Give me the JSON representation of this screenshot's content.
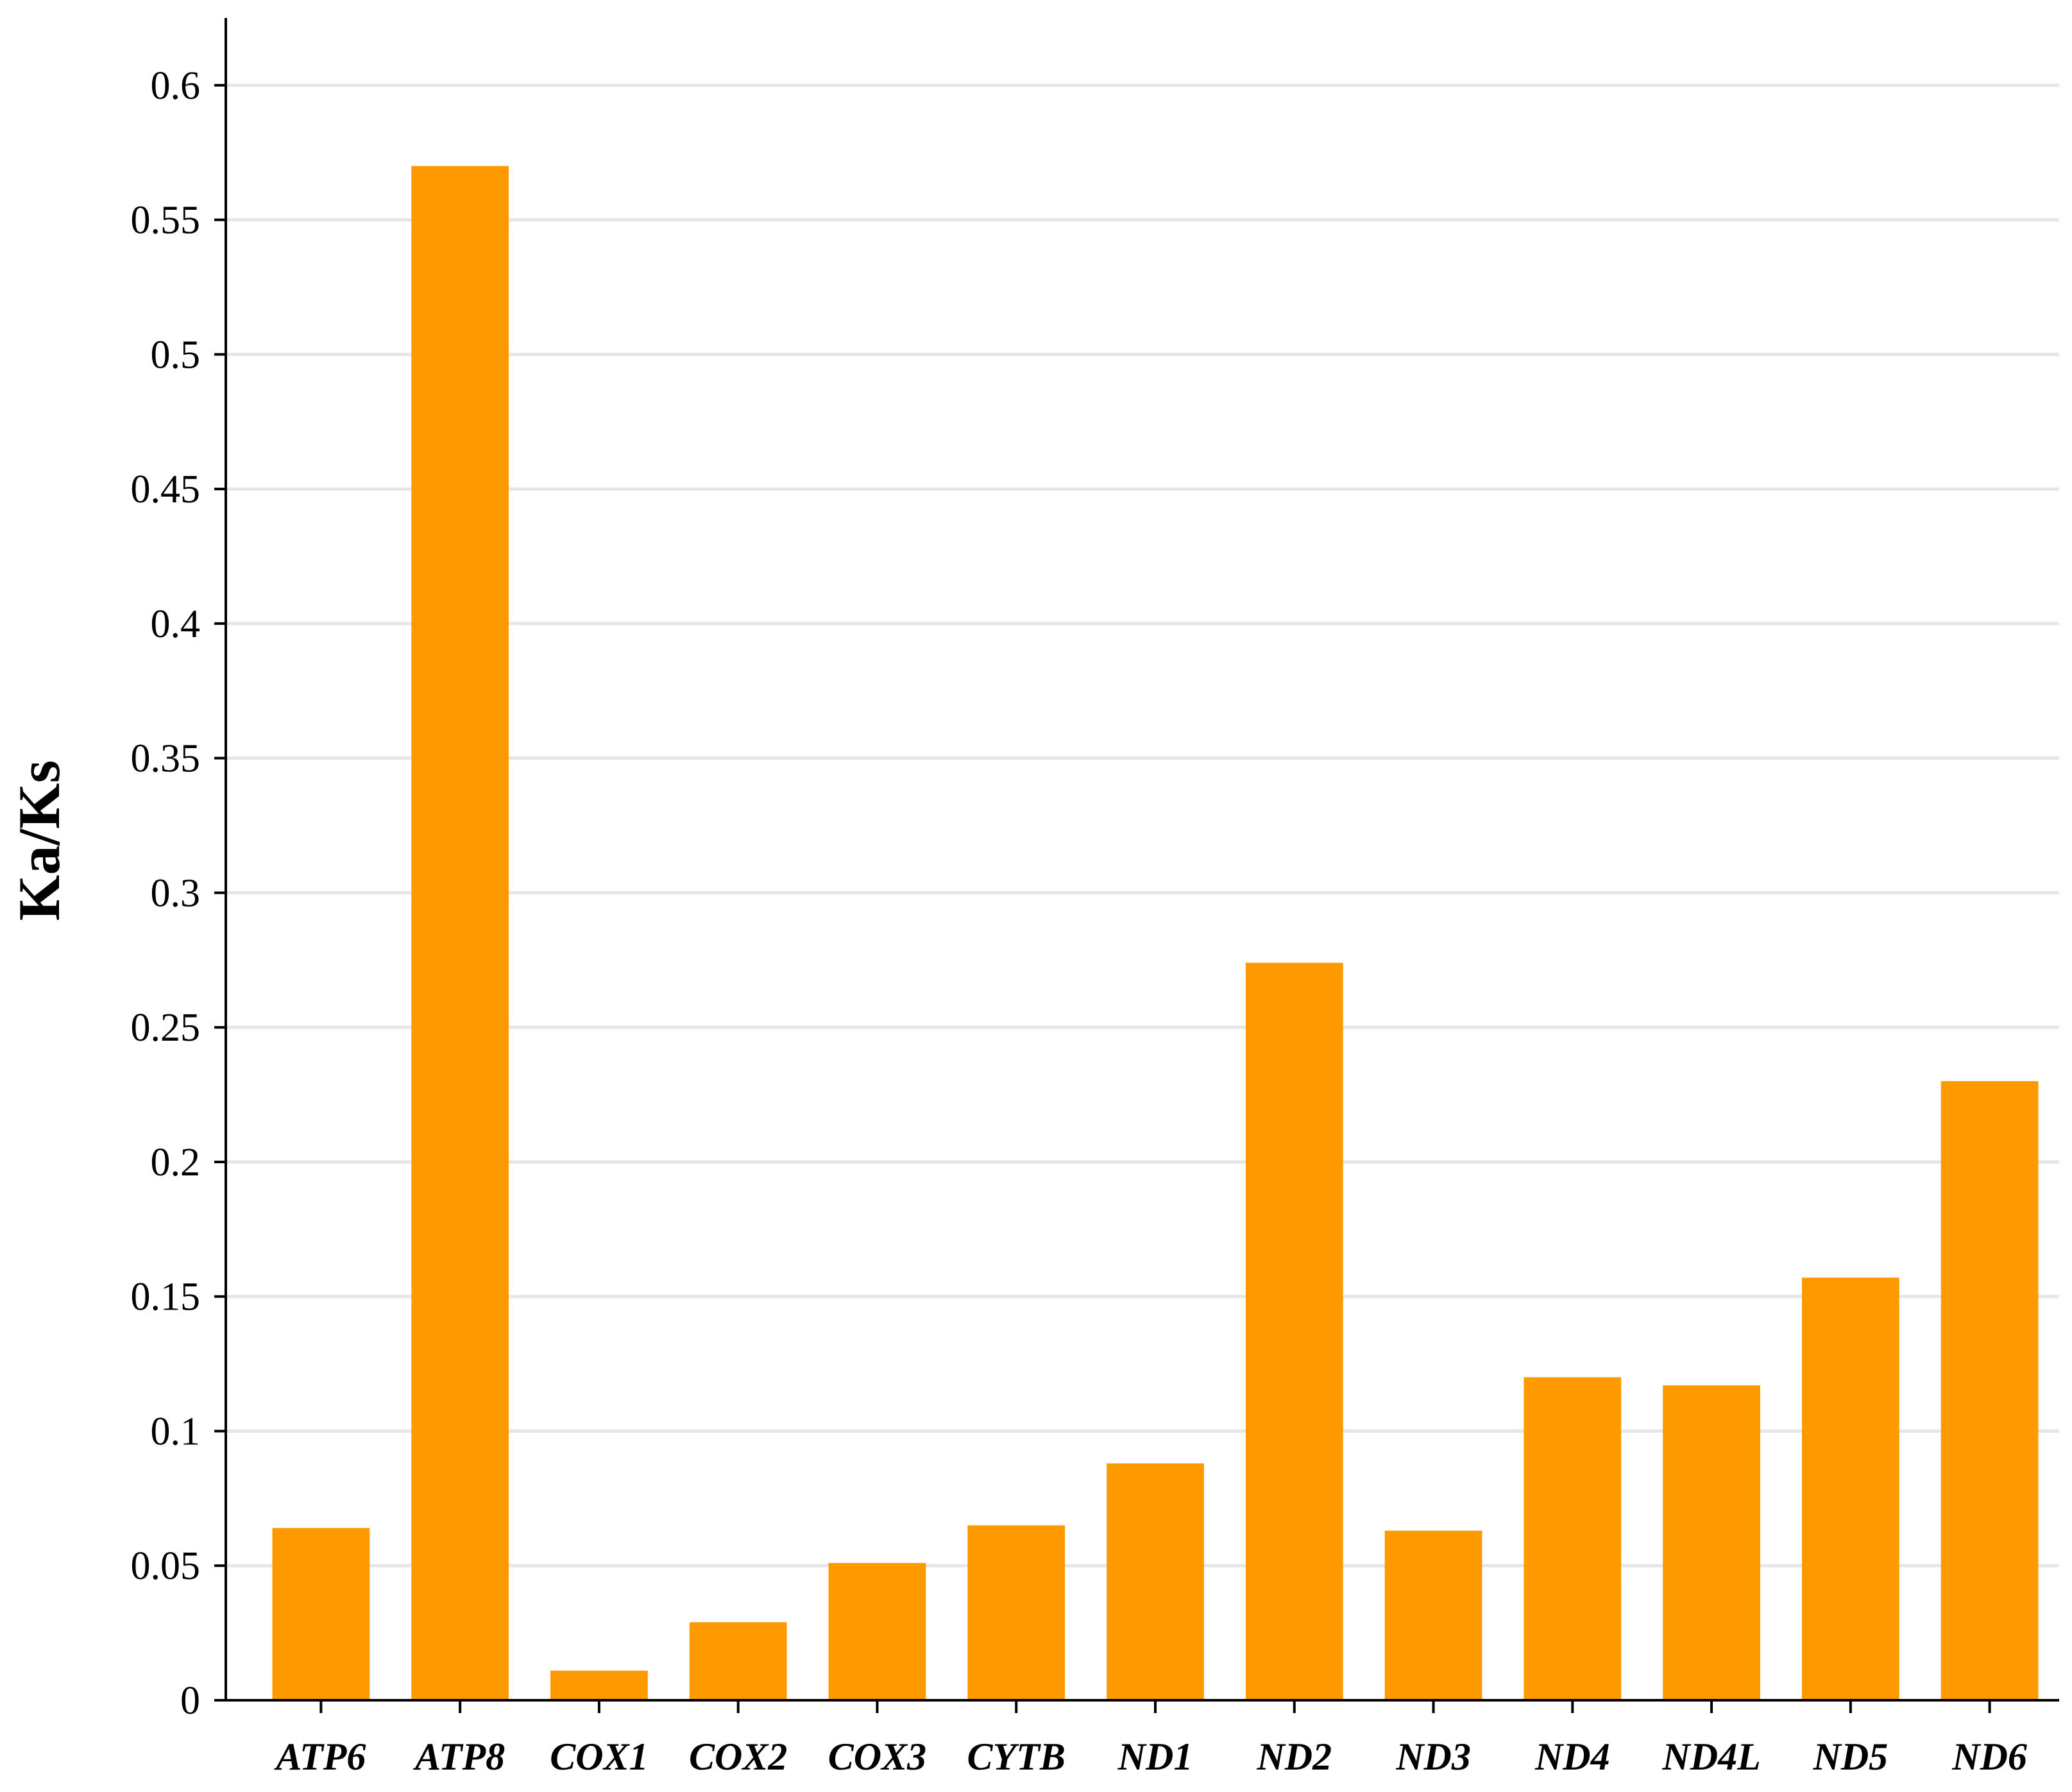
{
  "chart_data": {
    "type": "bar",
    "title": "",
    "xlabel": "",
    "ylabel": "Ka/Ks",
    "categories": [
      "ATP6",
      "ATP8",
      "COX1",
      "COX2",
      "COX3",
      "CYTB",
      "ND1",
      "ND2",
      "ND3",
      "ND4",
      "ND4L",
      "ND5",
      "ND6"
    ],
    "values": [
      0.064,
      0.57,
      0.011,
      0.029,
      0.051,
      0.065,
      0.088,
      0.274,
      0.063,
      0.12,
      0.117,
      0.157,
      0.23
    ],
    "ylim": [
      0,
      0.625
    ],
    "yticks": [
      "0",
      "0.05",
      "0.1",
      "0.15",
      "0.2",
      "0.25",
      "0.3",
      "0.35",
      "0.4",
      "0.45",
      "0.5",
      "0.55",
      "0.6"
    ],
    "grid": "horizontal",
    "legend": "none",
    "colors": {
      "bar": "#FF9900",
      "grid": "#E6E6E6",
      "axis": "#000000"
    }
  }
}
